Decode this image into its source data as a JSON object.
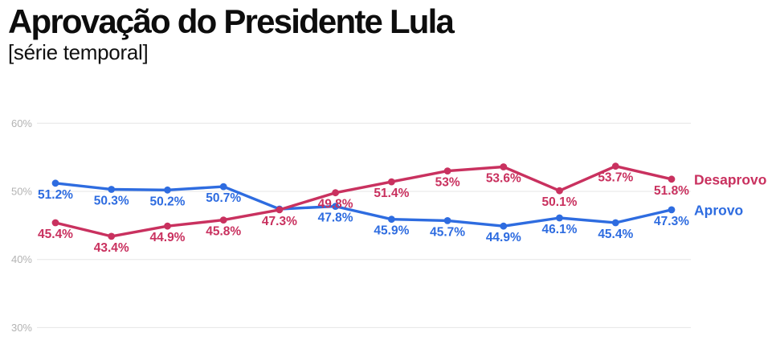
{
  "header": {
    "title": "Aprovação do Presidente Lula",
    "subtitle": "[série temporal]"
  },
  "chart_data": {
    "type": "line",
    "title": "Aprovação do Presidente Lula",
    "subtitle": "[série temporal]",
    "x_axis": {
      "visible": false,
      "num_points": 12
    },
    "y_axis": {
      "ticks": [
        {
          "label": "60%",
          "value": 60
        },
        {
          "label": "50%",
          "value": 50
        },
        {
          "label": "40%",
          "value": 40
        },
        {
          "label": "30%",
          "value": 30
        }
      ],
      "range": [
        30,
        60
      ],
      "grid": "horizontal"
    },
    "legend_position": "right-of-line-end",
    "series": [
      {
        "name": "Aprovo",
        "color": "#2e6ce0",
        "values": [
          51.2,
          50.3,
          50.2,
          50.7,
          47.4,
          47.8,
          45.9,
          45.7,
          44.9,
          46.1,
          45.4,
          47.3
        ],
        "labels": [
          "51.2%",
          "50.3%",
          "50.2%",
          "50.7%",
          "",
          "47.8%",
          "45.9%",
          "45.7%",
          "44.9%",
          "46.1%",
          "45.4%",
          "47.3%"
        ]
      },
      {
        "name": "Desaprovo",
        "color": "#c9315f",
        "values": [
          45.4,
          43.4,
          44.9,
          45.8,
          47.3,
          49.8,
          51.4,
          53.0,
          53.6,
          50.1,
          53.7,
          51.8
        ],
        "labels": [
          "45.4%",
          "43.4%",
          "44.9%",
          "45.8%",
          "47.3%",
          "49.8%",
          "51.4%",
          "53%",
          "53.6%",
          "50.1%",
          "53.7%",
          "51.8%"
        ]
      }
    ],
    "style_colors": {
      "grid_line": "#e6e6e6",
      "tick_text": "#b3b3b3",
      "background": "#ffffff"
    }
  }
}
